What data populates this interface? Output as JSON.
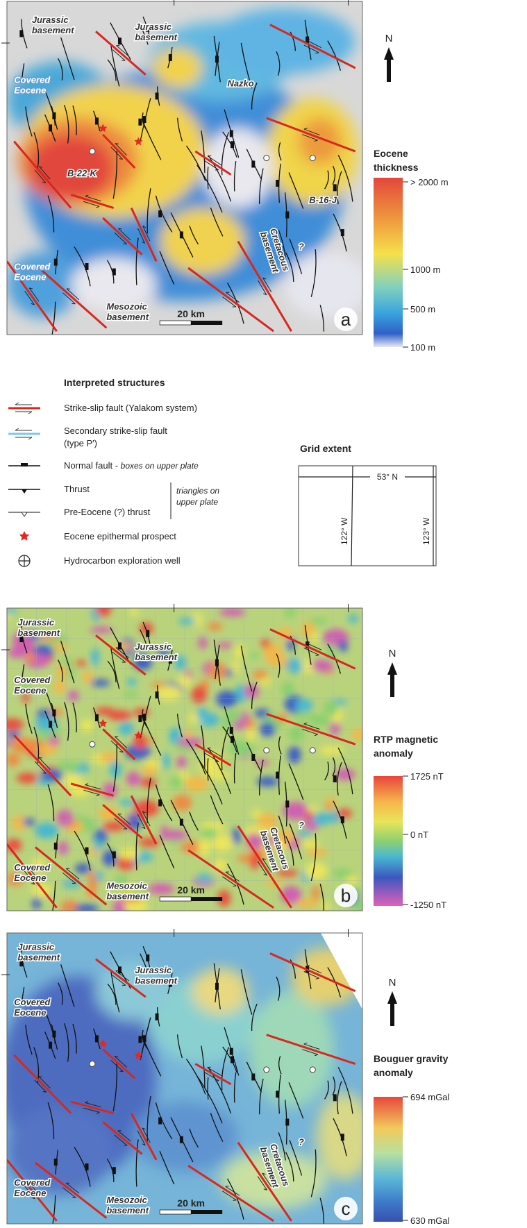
{
  "panels": [
    {
      "letter": "a",
      "north": "N",
      "scale_bar": "20 km",
      "labels": [
        [
          "Jurassic",
          "basement"
        ],
        [
          "Jurassic",
          "basement"
        ],
        [
          "Covered",
          "Eocene"
        ],
        [
          "Nazko"
        ],
        [
          "B-22-K"
        ],
        [
          "B-16-J"
        ],
        [
          "Cretacous",
          "basement"
        ],
        [
          "Covered",
          "Eocene"
        ],
        [
          "Mesozoic",
          "basement"
        ],
        [
          "?"
        ]
      ],
      "legend_title": [
        "Eocene",
        "thickness"
      ],
      "colorbar_labels": [
        "> 2000 m",
        "1000 m",
        "500 m",
        "100 m"
      ]
    },
    {
      "letter": "b",
      "north": "N",
      "scale_bar": "20 km",
      "labels": [
        [
          "Jurassic",
          "basement"
        ],
        [
          "Jurassic",
          "basement"
        ],
        [
          "Covered",
          "Eocene"
        ],
        [
          "Cretacous",
          "basement"
        ],
        [
          "Covered",
          "Eocene"
        ],
        [
          "Mesozoic",
          "basement"
        ],
        [
          "?"
        ]
      ],
      "legend_title": [
        "RTP magnetic",
        "anomaly"
      ],
      "colorbar_labels": [
        "1725 nT",
        "0 nT",
        "-1250 nT"
      ]
    },
    {
      "letter": "c",
      "north": "N",
      "scale_bar": "20 km",
      "labels": [
        [
          "Jurassic",
          "basement"
        ],
        [
          "Jurassic",
          "basement"
        ],
        [
          "Covered",
          "Eocene"
        ],
        [
          "Cretacous",
          "basement"
        ],
        [
          "Covered",
          "Eocene"
        ],
        [
          "Mesozoic",
          "basement"
        ],
        [
          "?"
        ]
      ],
      "legend_title": [
        "Bouguer gravity",
        "anomaly"
      ],
      "colorbar_labels": [
        "694 mGal",
        "630 mGal"
      ]
    }
  ],
  "legend": {
    "title": "Interpreted structures",
    "strike_slip": "Strike-slip fault (Yalakom system)",
    "secondary": [
      "Secondary strike-slip fault",
      "(type P′)"
    ],
    "normal": {
      "label": "Normal fault -",
      "note": "boxes on upper plate"
    },
    "thrust": "Thrust",
    "pre_eocene": "Pre-Eocene (?) thrust",
    "triangles_note": [
      "triangles on",
      "upper plate"
    ],
    "prospect": "Eocene epithermal prospect",
    "well": "Hydrocarbon exploration well"
  },
  "grid_extent": {
    "title": "Grid extent",
    "lat": "53° N",
    "lon_left": "122° W",
    "lon_right": "123° W"
  }
}
